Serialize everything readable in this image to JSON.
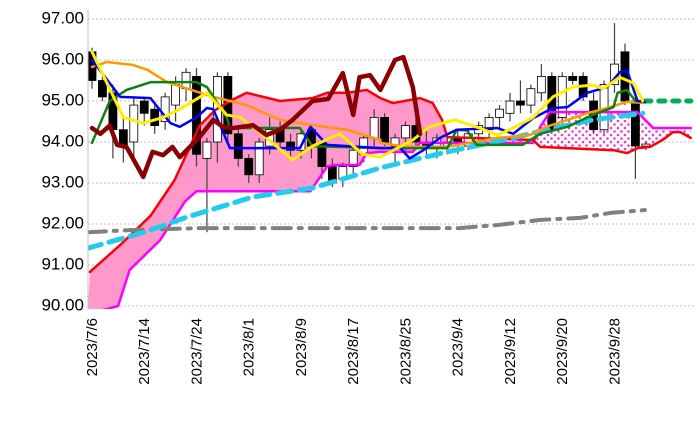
{
  "chart_data": {
    "type": "candlestick",
    "title": "",
    "xlabel": "",
    "ylabel": "",
    "ylim": [
      90,
      97
    ],
    "grid": true,
    "y_ticks": [
      "97.00",
      "96.00",
      "95.00",
      "94.00",
      "93.00",
      "92.00",
      "91.00",
      "90.00"
    ],
    "y_tick_values": [
      97,
      96,
      95,
      94,
      93,
      92,
      91,
      90
    ],
    "x_ticks": [
      {
        "index": 0,
        "label": "2023/7/6"
      },
      {
        "index": 5,
        "label": "2023/7/14"
      },
      {
        "index": 10,
        "label": "2023/7/24"
      },
      {
        "index": 15,
        "label": "2023/8/1"
      },
      {
        "index": 20,
        "label": "2023/8/9"
      },
      {
        "index": 25,
        "label": "2023/8/17"
      },
      {
        "index": 30,
        "label": "2023/8/25"
      },
      {
        "index": 35,
        "label": "2023/9/4"
      },
      {
        "index": 40,
        "label": "2023/9/12"
      },
      {
        "index": 45,
        "label": "2023/9/20"
      },
      {
        "index": 50,
        "label": "2023/9/28"
      }
    ],
    "x_range": [
      -0.4,
      57.3
    ],
    "candles_ohlc": [
      [
        96.2,
        96.3,
        95.3,
        95.5
      ],
      [
        95.5,
        95.7,
        95.0,
        95.1
      ],
      [
        95.2,
        95.4,
        93.6,
        94.3
      ],
      [
        94.3,
        94.6,
        93.5,
        93.9
      ],
      [
        94.0,
        95.1,
        93.6,
        94.9
      ],
      [
        95.0,
        95.1,
        94.4,
        94.7
      ],
      [
        94.8,
        94.9,
        94.2,
        94.4
      ],
      [
        94.5,
        95.2,
        94.3,
        95.1
      ],
      [
        94.9,
        95.6,
        94.5,
        95.4
      ],
      [
        95.3,
        95.8,
        95.0,
        95.7
      ],
      [
        95.6,
        95.8,
        93.4,
        93.7
      ],
      [
        93.6,
        94.1,
        91.8,
        94.0
      ],
      [
        94.0,
        95.7,
        93.5,
        95.6
      ],
      [
        95.6,
        95.7,
        94.0,
        94.2
      ],
      [
        94.2,
        94.4,
        93.4,
        93.6
      ],
      [
        93.6,
        93.7,
        93.0,
        93.2
      ],
      [
        93.2,
        94.1,
        93.0,
        94.0
      ],
      [
        93.9,
        94.6,
        93.7,
        94.3
      ],
      [
        94.3,
        94.5,
        93.8,
        94.0
      ],
      [
        94.0,
        94.2,
        93.6,
        93.8
      ],
      [
        93.8,
        94.3,
        93.6,
        94.2
      ],
      [
        94.3,
        94.4,
        93.6,
        93.9
      ],
      [
        94.0,
        94.1,
        93.1,
        93.4
      ],
      [
        93.4,
        93.6,
        92.9,
        93.0
      ],
      [
        93.1,
        93.5,
        92.9,
        93.4
      ],
      [
        93.4,
        93.9,
        93.2,
        93.8
      ],
      [
        93.7,
        94.2,
        93.5,
        94.1
      ],
      [
        94.1,
        94.8,
        93.9,
        94.6
      ],
      [
        94.6,
        94.7,
        93.9,
        94.0
      ],
      [
        93.9,
        94.2,
        93.4,
        94.1
      ],
      [
        94.1,
        94.5,
        93.7,
        94.4
      ],
      [
        94.4,
        94.6,
        93.8,
        94.0
      ],
      [
        94.0,
        94.3,
        93.7,
        93.9
      ],
      [
        93.9,
        94.2,
        93.6,
        94.1
      ],
      [
        93.9,
        94.1,
        93.7,
        94.0
      ],
      [
        94.1,
        94.3,
        93.7,
        94.0
      ],
      [
        93.9,
        94.3,
        93.8,
        94.2
      ],
      [
        94.2,
        94.5,
        94.0,
        94.4
      ],
      [
        94.3,
        94.7,
        94.1,
        94.6
      ],
      [
        94.6,
        94.9,
        94.3,
        94.8
      ],
      [
        94.7,
        95.2,
        94.5,
        95.0
      ],
      [
        95.0,
        95.5,
        94.7,
        94.9
      ],
      [
        94.9,
        95.4,
        94.7,
        95.3
      ],
      [
        95.2,
        95.9,
        95.0,
        95.6
      ],
      [
        95.6,
        95.7,
        94.2,
        94.3
      ],
      [
        94.6,
        95.7,
        94.4,
        95.6
      ],
      [
        95.6,
        95.7,
        95.4,
        95.5
      ],
      [
        95.6,
        95.7,
        95.0,
        95.1
      ],
      [
        95.0,
        95.2,
        94.2,
        94.3
      ],
      [
        94.3,
        95.5,
        94.2,
        95.4
      ],
      [
        95.4,
        96.9,
        95.2,
        95.9
      ],
      [
        96.2,
        96.4,
        94.9,
        95.0
      ],
      [
        95.0,
        95.1,
        93.1,
        93.9
      ],
      [
        93.9,
        94.0,
        93.8,
        93.95
      ]
    ],
    "series": [
      {
        "name": "yellow-line",
        "color": "#ffee00",
        "width": 3,
        "dash": "",
        "points": [
          [
            0,
            96.2
          ],
          [
            3.0,
            94.6
          ],
          [
            4.9,
            94.46
          ],
          [
            6.8,
            94.6
          ],
          [
            8.4,
            94.8
          ],
          [
            11.0,
            95.2
          ],
          [
            12.9,
            94.66
          ],
          [
            14.2,
            94.6
          ],
          [
            16.7,
            94.1
          ],
          [
            19.2,
            93.56
          ],
          [
            21.1,
            93.9
          ],
          [
            23.7,
            94.2
          ],
          [
            25.9,
            93.7
          ],
          [
            27.6,
            93.63
          ],
          [
            30.7,
            94.05
          ],
          [
            32.3,
            94.37
          ],
          [
            34.7,
            94.54
          ],
          [
            37.1,
            94.34
          ],
          [
            38.8,
            94.17
          ],
          [
            40.3,
            94.34
          ],
          [
            42.2,
            94.6
          ],
          [
            44.1,
            95.1
          ],
          [
            46.0,
            95.34
          ],
          [
            47.9,
            95.39
          ],
          [
            48.9,
            95.3
          ],
          [
            50.5,
            95.58
          ],
          [
            51.8,
            95.44
          ],
          [
            52.7,
            95.0
          ]
        ]
      },
      {
        "name": "blue-line",
        "color": "#0000ff",
        "width": 2.5,
        "dash": "",
        "points": [
          [
            0,
            96.0
          ],
          [
            2.7,
            95.1
          ],
          [
            5.6,
            95.07
          ],
          [
            7.5,
            94.46
          ],
          [
            8.4,
            94.37
          ],
          [
            10.0,
            94.6
          ],
          [
            11.0,
            94.83
          ],
          [
            11.6,
            94.8
          ],
          [
            13.2,
            93.85
          ],
          [
            19.9,
            93.85
          ],
          [
            20.9,
            94.37
          ],
          [
            22.5,
            93.93
          ],
          [
            27.6,
            93.85
          ],
          [
            29.5,
            93.85
          ],
          [
            30.4,
            93.6
          ],
          [
            31.7,
            93.8
          ],
          [
            33.3,
            94.1
          ],
          [
            34.9,
            94.3
          ],
          [
            38.8,
            94.34
          ],
          [
            40.3,
            94.2
          ],
          [
            42.2,
            94.58
          ],
          [
            44.1,
            94.83
          ],
          [
            45.5,
            94.85
          ],
          [
            47.4,
            95.2
          ],
          [
            49.3,
            95.34
          ],
          [
            50.5,
            95.7
          ],
          [
            51.2,
            95.75
          ],
          [
            52.2,
            95.0
          ],
          [
            52.9,
            94.98
          ]
        ]
      },
      {
        "name": "green-line",
        "color": "#108010",
        "width": 2.5,
        "dash": "",
        "points": [
          [
            0,
            93.98
          ],
          [
            1.7,
            95.0
          ],
          [
            3.3,
            95.27
          ],
          [
            5.6,
            95.46
          ],
          [
            10.0,
            95.46
          ],
          [
            11.0,
            95.34
          ],
          [
            12.9,
            94.6
          ],
          [
            13.2,
            94.34
          ],
          [
            19.9,
            94.34
          ],
          [
            21.1,
            93.9
          ],
          [
            27.6,
            93.85
          ],
          [
            34.0,
            93.85
          ],
          [
            34.9,
            94.3
          ],
          [
            35.9,
            94.28
          ],
          [
            36.8,
            93.93
          ],
          [
            41.2,
            93.93
          ],
          [
            42.9,
            94.2
          ],
          [
            45.5,
            94.37
          ],
          [
            47.9,
            94.66
          ],
          [
            49.9,
            94.85
          ],
          [
            50.3,
            95.2
          ],
          [
            51.2,
            95.27
          ],
          [
            52.0,
            95.0
          ],
          [
            52.9,
            95.0
          ]
        ]
      },
      {
        "name": "green-dotted-projection",
        "color": "#00b050",
        "width": 5,
        "dash": "6 8",
        "points": [
          [
            52.9,
            95.0
          ],
          [
            57.3,
            95.0
          ]
        ]
      },
      {
        "name": "orange-line",
        "color": "#ff9900",
        "width": 2.5,
        "dash": "",
        "points": [
          [
            0,
            95.83
          ],
          [
            1.4,
            95.95
          ],
          [
            3.9,
            95.88
          ],
          [
            5.3,
            95.76
          ],
          [
            7.2,
            95.46
          ],
          [
            11.6,
            95.1
          ],
          [
            14.8,
            94.9
          ],
          [
            18.0,
            94.54
          ],
          [
            21.1,
            94.41
          ],
          [
            24.4,
            94.3
          ],
          [
            27.6,
            94.05
          ],
          [
            27.6,
            93.98
          ],
          [
            30.1,
            93.88
          ],
          [
            34.0,
            93.88
          ],
          [
            38.8,
            94.1
          ],
          [
            41.9,
            94.17
          ],
          [
            43.5,
            94.37
          ],
          [
            45.5,
            94.54
          ],
          [
            47.4,
            94.7
          ],
          [
            49.3,
            94.83
          ],
          [
            51.2,
            94.98
          ],
          [
            52.9,
            94.95
          ]
        ]
      },
      {
        "name": "dark-red-lagging-line",
        "color": "#8b0000",
        "width": 4.5,
        "dash": "",
        "points": [
          [
            0,
            94.34
          ],
          [
            0.8,
            94.2
          ],
          [
            1.7,
            94.4
          ],
          [
            2.4,
            93.93
          ],
          [
            3.3,
            93.88
          ],
          [
            4.9,
            93.15
          ],
          [
            5.8,
            93.76
          ],
          [
            6.8,
            93.68
          ],
          [
            7.7,
            93.88
          ],
          [
            8.4,
            93.63
          ],
          [
            10.3,
            94.12
          ],
          [
            11.6,
            94.54
          ],
          [
            12.5,
            94.37
          ],
          [
            13.5,
            94.34
          ],
          [
            15.4,
            94.41
          ],
          [
            16.7,
            94.17
          ],
          [
            18.0,
            94.3
          ],
          [
            19.2,
            94.54
          ],
          [
            21.1,
            95.0
          ],
          [
            22.6,
            95.05
          ],
          [
            24.0,
            95.68
          ],
          [
            25.0,
            94.66
          ],
          [
            25.6,
            95.58
          ],
          [
            26.6,
            95.63
          ],
          [
            27.6,
            95.27
          ],
          [
            29.0,
            96.0
          ],
          [
            29.8,
            96.07
          ],
          [
            30.7,
            95.34
          ],
          [
            31.4,
            94.2
          ]
        ]
      },
      {
        "name": "cyan-dashed-line",
        "color": "#22ccee",
        "width": 5,
        "dash": "14 8",
        "points": [
          [
            -0.4,
            91.41
          ],
          [
            5.0,
            91.8
          ],
          [
            9.1,
            92.17
          ],
          [
            15.4,
            92.66
          ],
          [
            21.1,
            92.88
          ],
          [
            26.3,
            93.27
          ],
          [
            27.6,
            93.37
          ],
          [
            30.7,
            93.56
          ],
          [
            34.0,
            93.76
          ],
          [
            40.3,
            94.1
          ],
          [
            43.5,
            94.3
          ],
          [
            47.9,
            94.54
          ],
          [
            52.7,
            94.7
          ]
        ]
      },
      {
        "name": "gray-dash-dot-line",
        "color": "#808080",
        "width": 4,
        "dash": "18 8 3 8",
        "points": [
          [
            -0.4,
            91.8
          ],
          [
            3.6,
            91.85
          ],
          [
            10.3,
            91.9
          ],
          [
            19.9,
            91.9
          ],
          [
            29.5,
            91.9
          ],
          [
            35.2,
            91.9
          ],
          [
            39.0,
            91.98
          ],
          [
            42.9,
            92.1
          ],
          [
            46.7,
            92.15
          ],
          [
            49.6,
            92.27
          ],
          [
            52.9,
            92.34
          ]
        ]
      }
    ],
    "cloud": {
      "span_a": {
        "name": "red-cloud-line",
        "color": "#ff0000",
        "points": [
          [
            -0.2,
            90.83
          ],
          [
            2.7,
            91.49
          ],
          [
            5.6,
            92.2
          ],
          [
            7.9,
            93.07
          ],
          [
            9.4,
            93.9
          ],
          [
            10.3,
            94.4
          ],
          [
            11.8,
            94.78
          ],
          [
            13.2,
            95.0
          ],
          [
            14.8,
            95.2
          ],
          [
            18.0,
            95.0
          ],
          [
            21.1,
            95.07
          ],
          [
            22.5,
            95.2
          ],
          [
            24.4,
            95.2
          ],
          [
            26.3,
            95.27
          ],
          [
            27.6,
            95.07
          ],
          [
            28.8,
            94.95
          ],
          [
            31.4,
            95.07
          ],
          [
            32.6,
            94.95
          ],
          [
            33.5,
            94.54
          ],
          [
            34.0,
            94.12
          ],
          [
            42.2,
            94.05
          ],
          [
            42.9,
            93.88
          ],
          [
            49.9,
            93.8
          ],
          [
            51.2,
            93.73
          ],
          [
            52.2,
            93.85
          ],
          [
            53.4,
            93.88
          ],
          [
            54.6,
            94.05
          ],
          [
            55.6,
            94.24
          ],
          [
            56.3,
            94.24
          ],
          [
            57.3,
            94.1
          ]
        ]
      },
      "span_b": {
        "name": "magenta-cloud-line",
        "color": "#ff00ff",
        "points": [
          [
            -0.4,
            89.8
          ],
          [
            2.5,
            90.0
          ],
          [
            3.6,
            90.88
          ],
          [
            6.5,
            91.6
          ],
          [
            8.9,
            92.55
          ],
          [
            10.0,
            92.8
          ],
          [
            20.9,
            92.8
          ],
          [
            22.5,
            93.4
          ],
          [
            23.1,
            93.44
          ],
          [
            25.6,
            93.44
          ],
          [
            26.3,
            93.73
          ],
          [
            27.6,
            93.76
          ],
          [
            30.7,
            93.76
          ],
          [
            31.4,
            93.98
          ],
          [
            42.2,
            93.98
          ],
          [
            42.9,
            94.37
          ],
          [
            43.8,
            94.73
          ],
          [
            52.2,
            94.73
          ],
          [
            53.7,
            94.34
          ],
          [
            57.3,
            94.34
          ]
        ]
      },
      "fill_bullish": "#ff99cc",
      "fill_bearish_dots": "#ff33cc",
      "crossover_index": 34.0
    },
    "candle_colors": {
      "up": "#ffffff",
      "down": "#000000",
      "outline": "#000000",
      "wick": "#404040"
    },
    "gridline_color": "#c0c0c0"
  }
}
